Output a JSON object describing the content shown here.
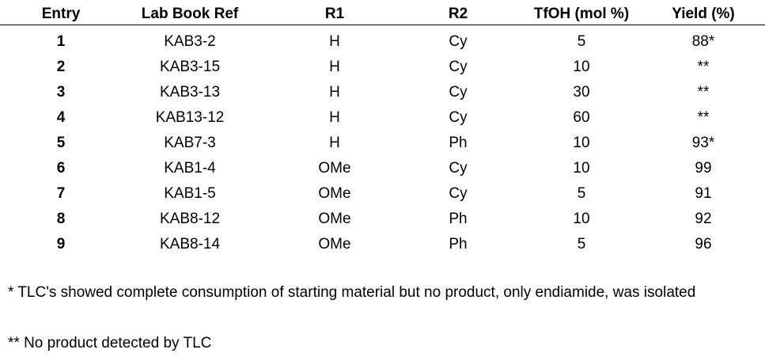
{
  "table": {
    "headers": [
      "Entry",
      "Lab Book Ref",
      "R1",
      "R2",
      "TfOH (mol %)",
      "Yield (%)"
    ],
    "rows": [
      [
        1,
        "KAB3-2",
        "H",
        "Cy",
        5,
        "88*"
      ],
      [
        2,
        "KAB3-15",
        "H",
        "Cy",
        10,
        "**"
      ],
      [
        3,
        "KAB3-13",
        "H",
        "Cy",
        30,
        "**"
      ],
      [
        4,
        "KAB13-12",
        "H",
        "Cy",
        60,
        "**"
      ],
      [
        5,
        "KAB7-3",
        "H",
        "Ph",
        10,
        "93*"
      ],
      [
        6,
        "KAB1-4",
        "OMe",
        "Cy",
        10,
        99
      ],
      [
        7,
        "KAB1-5",
        "OMe",
        "Cy",
        5,
        91
      ],
      [
        8,
        "KAB8-12",
        "OMe",
        "Ph",
        10,
        92
      ],
      [
        9,
        "KAB8-14",
        "OMe",
        "Ph",
        5,
        96
      ]
    ]
  },
  "footnotes": [
    "* TLC's showed complete consumption of starting material but no product, only endiamide, was isolated",
    "**  No product detected by TLC"
  ]
}
